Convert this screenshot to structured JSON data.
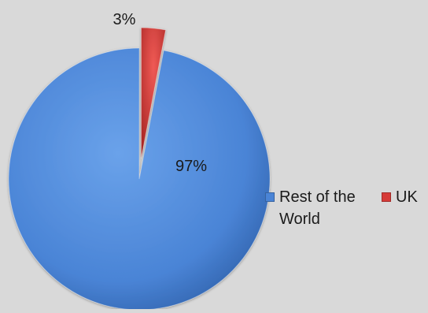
{
  "chart_data": {
    "type": "pie",
    "categories": [
      "Rest of the World",
      "UK"
    ],
    "values": [
      97,
      3
    ],
    "data_labels": [
      "97%",
      "3%"
    ],
    "colors": [
      "#4a84d6",
      "#d63b38"
    ],
    "exploded": [
      false,
      true
    ],
    "legend_position": "right"
  },
  "legend": {
    "items": [
      {
        "label": "Rest of the World",
        "color": "#4a84d6"
      },
      {
        "label": "UK",
        "color": "#d63b38"
      }
    ]
  }
}
